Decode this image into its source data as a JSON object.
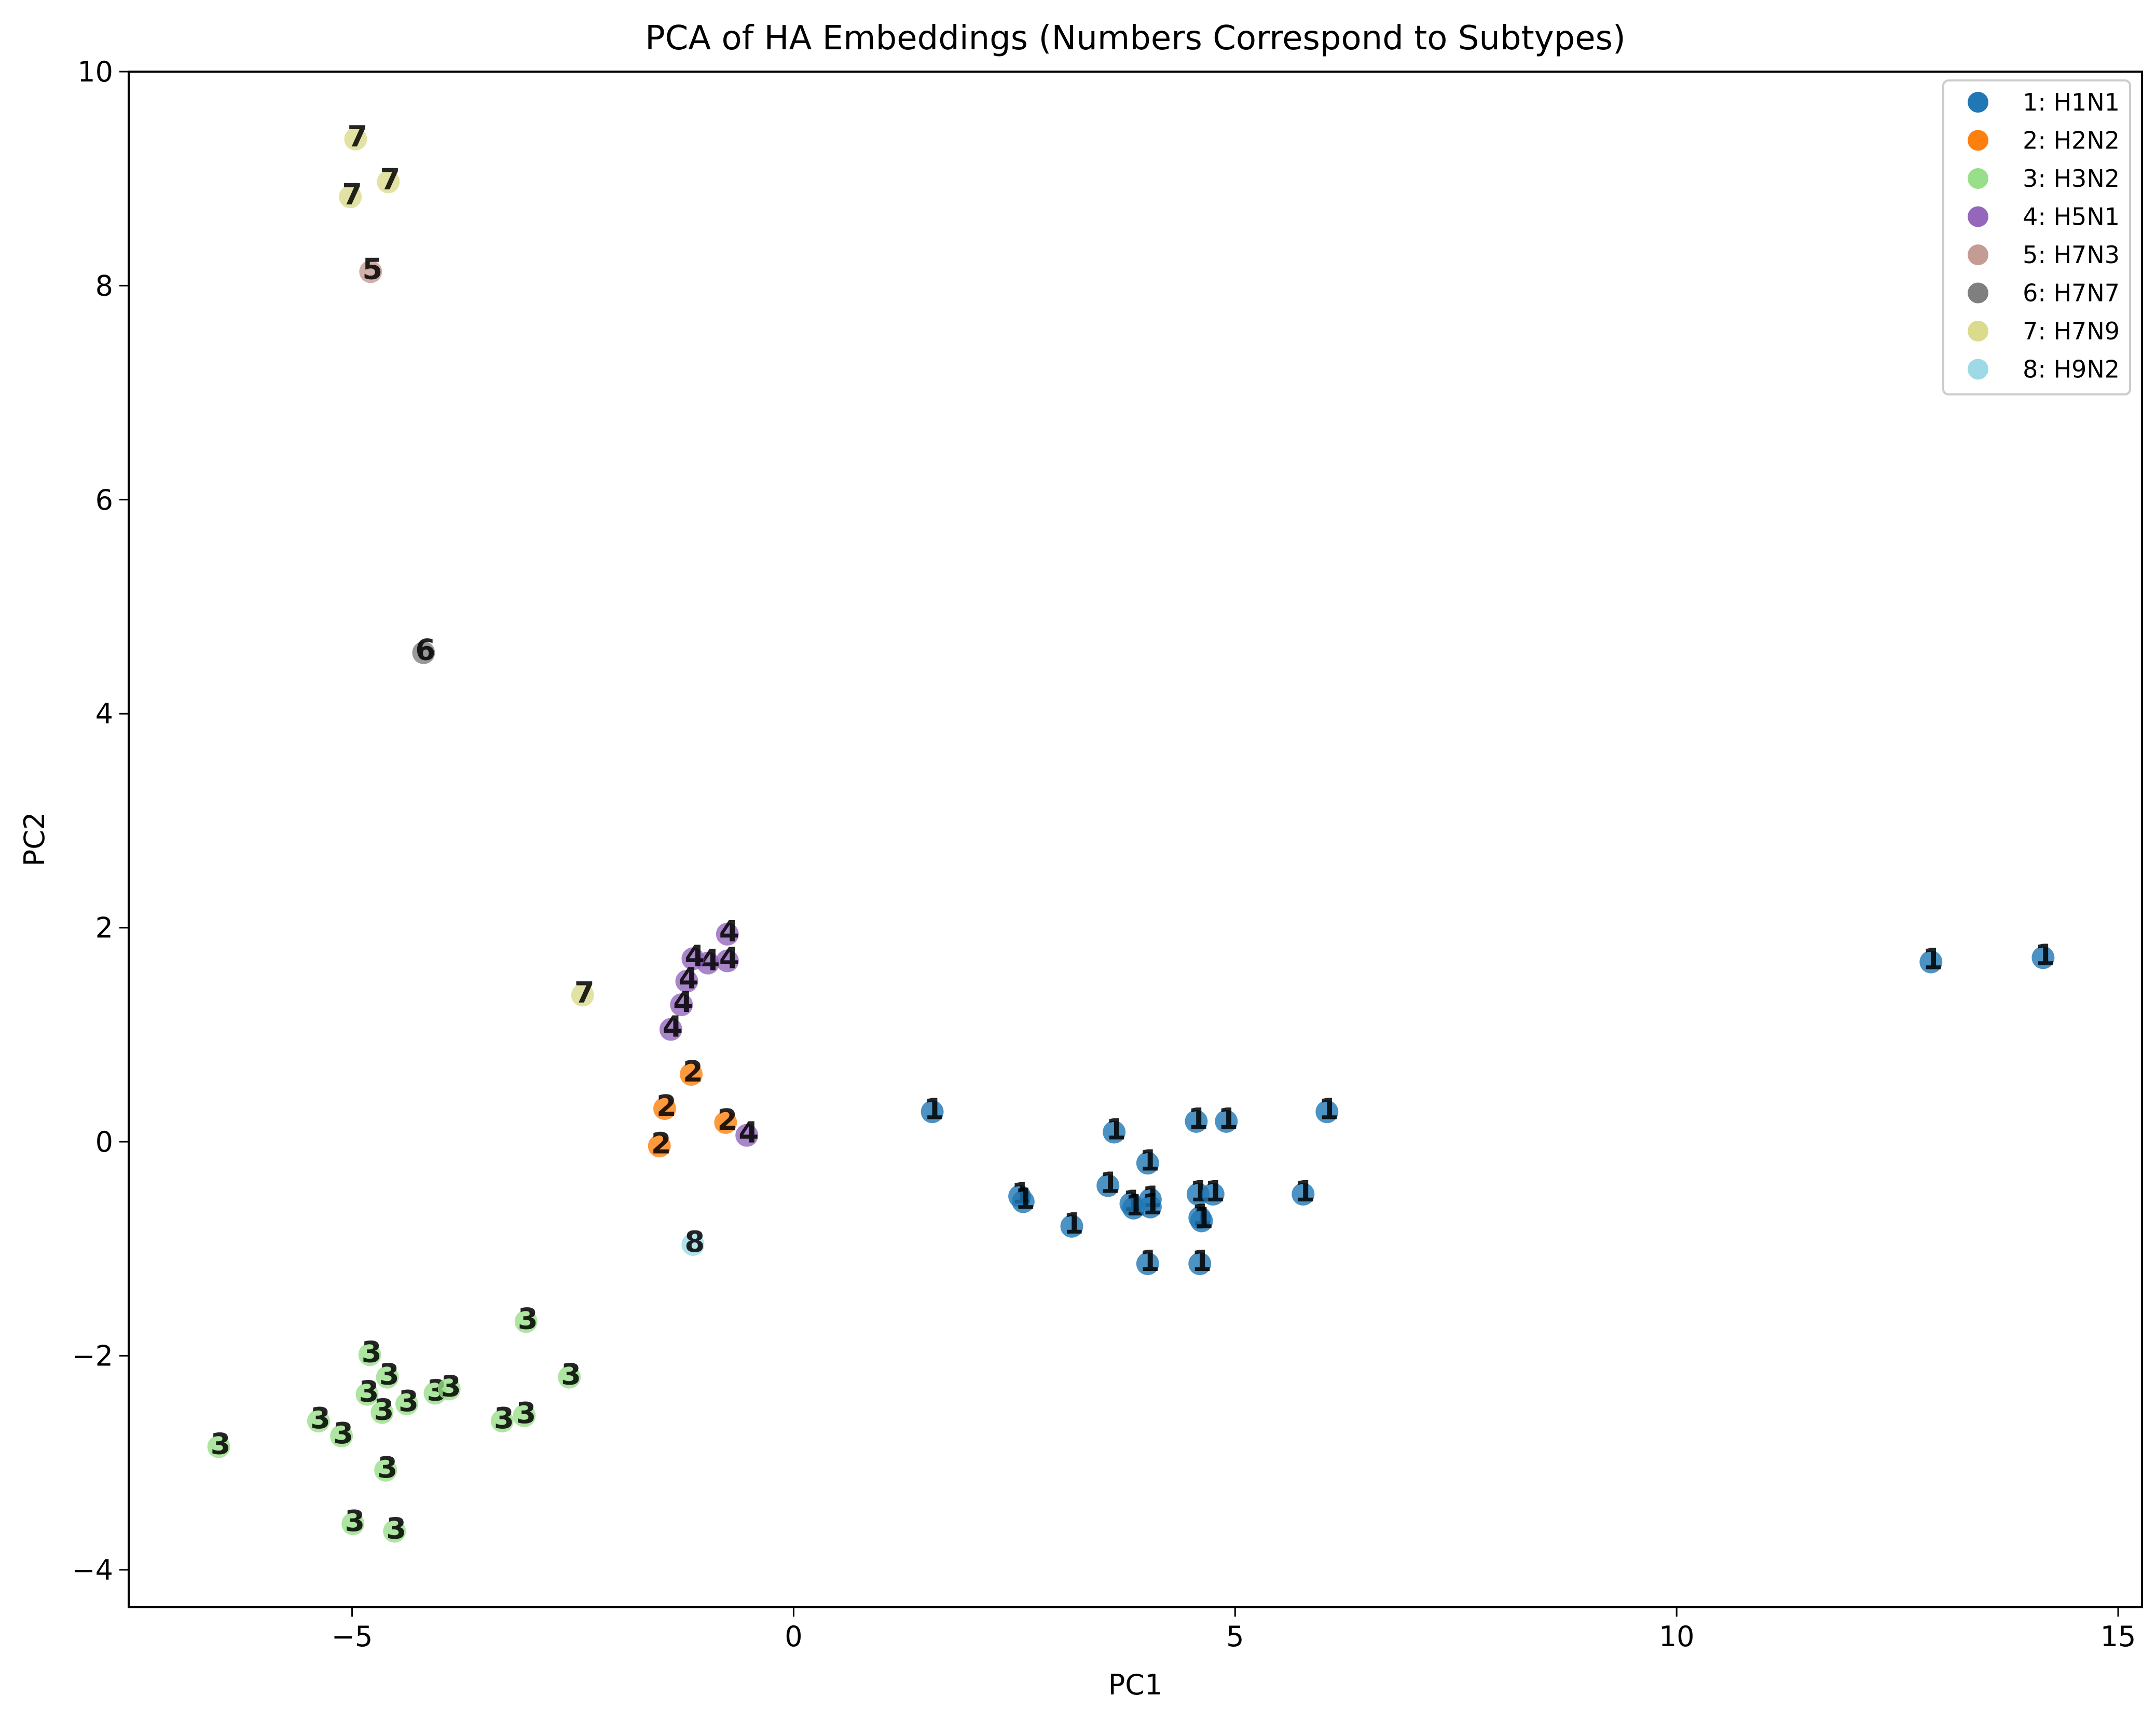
{
  "chart_data": {
    "type": "scatter",
    "title": "PCA of HA Embeddings (Numbers Correspond to Subtypes)",
    "xlabel": "PC1",
    "ylabel": "PC2",
    "xlim": [
      -7.53,
      15.27
    ],
    "ylim": [
      -4.35,
      10.0
    ],
    "xticks": [
      -5,
      0,
      5,
      10,
      15
    ],
    "yticks": [
      -4,
      -2,
      0,
      2,
      4,
      6,
      8,
      10
    ],
    "grid": false,
    "legend_position": "upper right",
    "point_labels": "subtype number drawn over each marker",
    "series": [
      {
        "id": 1,
        "name": "1: H1N1",
        "color": "#1f77b4",
        "points": [
          [
            1.57,
            0.28
          ],
          [
            3.63,
            0.09
          ],
          [
            4.56,
            0.19
          ],
          [
            4.9,
            0.19
          ],
          [
            6.04,
            0.28
          ],
          [
            4.01,
            -0.2
          ],
          [
            3.56,
            -0.41
          ],
          [
            2.56,
            -0.51
          ],
          [
            2.6,
            -0.56
          ],
          [
            3.82,
            -0.58
          ],
          [
            3.85,
            -0.62
          ],
          [
            4.04,
            -0.54
          ],
          [
            4.04,
            -0.61
          ],
          [
            4.58,
            -0.49
          ],
          [
            4.75,
            -0.49
          ],
          [
            5.77,
            -0.49
          ],
          [
            4.6,
            -0.71
          ],
          [
            4.62,
            -0.74
          ],
          [
            3.15,
            -0.79
          ],
          [
            4.01,
            -1.14
          ],
          [
            4.6,
            -1.14
          ],
          [
            12.88,
            1.68
          ],
          [
            14.15,
            1.72
          ]
        ]
      },
      {
        "id": 2,
        "name": "2: H2N2",
        "color": "#ff7f0e",
        "points": [
          [
            -1.16,
            0.63
          ],
          [
            -1.46,
            0.31
          ],
          [
            -0.77,
            0.18
          ],
          [
            -1.52,
            -0.04
          ]
        ]
      },
      {
        "id": 3,
        "name": "3: H3N2",
        "color": "#98df8a",
        "points": [
          [
            -3.03,
            -1.68
          ],
          [
            -4.8,
            -1.99
          ],
          [
            -4.6,
            -2.2
          ],
          [
            -4.83,
            -2.36
          ],
          [
            -4.66,
            -2.53
          ],
          [
            -4.38,
            -2.45
          ],
          [
            -4.06,
            -2.35
          ],
          [
            -3.9,
            -2.31
          ],
          [
            -2.54,
            -2.2
          ],
          [
            -3.3,
            -2.61
          ],
          [
            -3.05,
            -2.56
          ],
          [
            -5.38,
            -2.61
          ],
          [
            -5.12,
            -2.75
          ],
          [
            -6.51,
            -2.85
          ],
          [
            -4.62,
            -3.07
          ],
          [
            -4.99,
            -3.57
          ],
          [
            -4.52,
            -3.64
          ]
        ]
      },
      {
        "id": 4,
        "name": "4: H5N1",
        "color": "#9467bd",
        "points": [
          [
            -0.75,
            1.94
          ],
          [
            -0.75,
            1.69
          ],
          [
            -0.97,
            1.67
          ],
          [
            -1.14,
            1.71
          ],
          [
            -1.21,
            1.5
          ],
          [
            -1.27,
            1.28
          ],
          [
            -1.39,
            1.05
          ],
          [
            -0.53,
            0.06
          ]
        ]
      },
      {
        "id": 5,
        "name": "5: H7N3",
        "color": "#c49c94",
        "points": [
          [
            -4.79,
            8.13
          ]
        ]
      },
      {
        "id": 6,
        "name": "6: H7N7",
        "color": "#7f7f7f",
        "points": [
          [
            -4.19,
            4.57
          ]
        ]
      },
      {
        "id": 7,
        "name": "7: H7N9",
        "color": "#dbdb8d",
        "points": [
          [
            -4.96,
            9.37
          ],
          [
            -4.59,
            8.97
          ],
          [
            -5.02,
            8.83
          ],
          [
            -2.39,
            1.37
          ]
        ]
      },
      {
        "id": 8,
        "name": "8: H9N2",
        "color": "#9edae5",
        "points": [
          [
            -1.14,
            -0.96
          ]
        ]
      }
    ]
  },
  "legend": {
    "items": [
      {
        "label": "1: H1N1",
        "color": "#1f77b4"
      },
      {
        "label": "2: H2N2",
        "color": "#ff7f0e"
      },
      {
        "label": "3: H3N2",
        "color": "#98df8a"
      },
      {
        "label": "4: H5N1",
        "color": "#9467bd"
      },
      {
        "label": "5: H7N3",
        "color": "#c49c94"
      },
      {
        "label": "6: H7N7",
        "color": "#7f7f7f"
      },
      {
        "label": "7: H7N9",
        "color": "#dbdb8d"
      },
      {
        "label": "8: H9N2",
        "color": "#9edae5"
      }
    ]
  }
}
